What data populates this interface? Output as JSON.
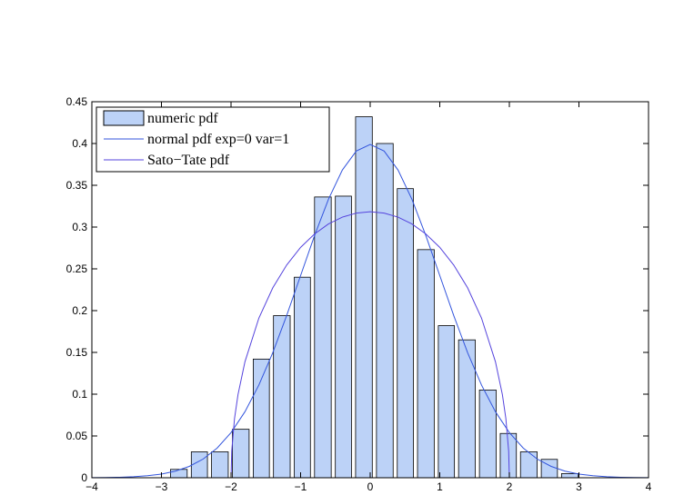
{
  "chart_data": {
    "type": "histogram",
    "bins": [
      -2.9,
      -2.6,
      -2.31,
      -2.01,
      -1.71,
      -1.42,
      -1.12,
      -0.83,
      -0.53,
      -0.24,
      0.06,
      0.36,
      0.65,
      0.95,
      1.24,
      1.54,
      1.84,
      2.13,
      2.43,
      2.72,
      3.02
    ],
    "values": [
      0.01,
      0.031,
      0.031,
      0.058,
      0.142,
      0.194,
      0.24,
      0.336,
      0.337,
      0.432,
      0.4,
      0.346,
      0.273,
      0.182,
      0.165,
      0.105,
      0.053,
      0.031,
      0.022,
      0.005
    ],
    "name": "numeric pdf",
    "color": "#bcd2f7",
    "edgecolor": "#000000",
    "series": [
      {
        "name": "normal pdf exp=0 var=1",
        "color": "#3355dd",
        "x": [
          -4,
          -3.8,
          -3.6,
          -3.4,
          -3.2,
          -3,
          -2.8,
          -2.6,
          -2.4,
          -2.2,
          -2,
          -1.8,
          -1.6,
          -1.4,
          -1.2,
          -1,
          -0.8,
          -0.6,
          -0.4,
          -0.2,
          0,
          0.2,
          0.4,
          0.6,
          0.8,
          1,
          1.2,
          1.4,
          1.6,
          1.8,
          2,
          2.2,
          2.4,
          2.6,
          2.8,
          3,
          3.2,
          3.4,
          3.6,
          3.8,
          4
        ],
        "values": [
          0.0001,
          0.0003,
          0.0006,
          0.0012,
          0.0024,
          0.0044,
          0.0079,
          0.0136,
          0.0224,
          0.0355,
          0.054,
          0.079,
          0.1109,
          0.1497,
          0.1942,
          0.242,
          0.2897,
          0.3332,
          0.3683,
          0.391,
          0.3989,
          0.391,
          0.3683,
          0.3332,
          0.2897,
          0.242,
          0.1942,
          0.1497,
          0.1109,
          0.079,
          0.054,
          0.0355,
          0.0224,
          0.0136,
          0.0079,
          0.0044,
          0.0024,
          0.0012,
          0.0006,
          0.0003,
          0.0001
        ]
      },
      {
        "name": "Sato−Tate pdf",
        "color": "#5544dd",
        "x": [
          -2,
          -1.99,
          -1.95,
          -1.9,
          -1.8,
          -1.6,
          -1.4,
          -1.2,
          -1,
          -0.8,
          -0.6,
          -0.4,
          -0.2,
          0,
          0.2,
          0.4,
          0.6,
          0.8,
          1,
          1.2,
          1.4,
          1.6,
          1.8,
          1.9,
          1.95,
          1.99,
          2
        ],
        "values": [
          0,
          0.0318,
          0.0707,
          0.0994,
          0.1388,
          0.191,
          0.2273,
          0.2546,
          0.2757,
          0.2917,
          0.3037,
          0.3119,
          0.3167,
          0.3183,
          0.3167,
          0.3119,
          0.3037,
          0.2917,
          0.2757,
          0.2546,
          0.2273,
          0.191,
          0.1388,
          0.0994,
          0.0707,
          0.0318,
          0
        ]
      }
    ],
    "xlim": [
      -4,
      4
    ],
    "ylim": [
      0,
      0.45
    ],
    "xticks": [
      {
        "value": -4,
        "label": "−4"
      },
      {
        "value": -3,
        "label": "−3"
      },
      {
        "value": -2,
        "label": "−2"
      },
      {
        "value": -1,
        "label": "−1"
      },
      0,
      1,
      2,
      3,
      4
    ],
    "yticks": [
      0,
      0.05,
      0.1,
      0.15,
      0.2,
      0.25,
      0.3,
      0.35,
      0.4,
      0.45
    ],
    "legend": "upper left",
    "grid": false
  }
}
